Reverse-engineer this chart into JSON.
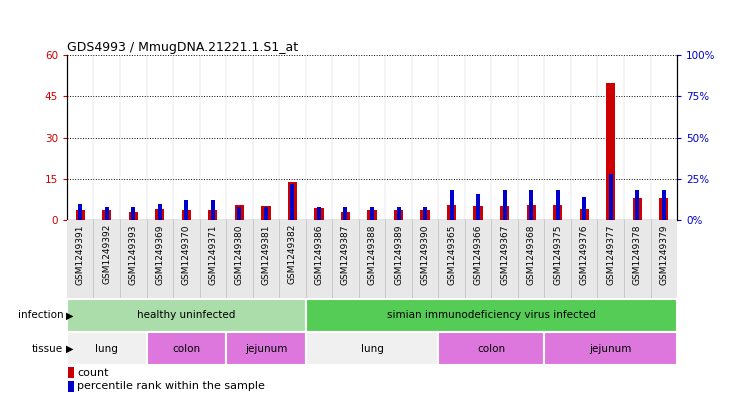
{
  "title": "GDS4993 / MmugDNA.21221.1.S1_at",
  "samples": [
    "GSM1249391",
    "GSM1249392",
    "GSM1249393",
    "GSM1249369",
    "GSM1249370",
    "GSM1249371",
    "GSM1249380",
    "GSM1249381",
    "GSM1249382",
    "GSM1249386",
    "GSM1249387",
    "GSM1249388",
    "GSM1249389",
    "GSM1249390",
    "GSM1249365",
    "GSM1249366",
    "GSM1249367",
    "GSM1249368",
    "GSM1249375",
    "GSM1249376",
    "GSM1249377",
    "GSM1249378",
    "GSM1249379"
  ],
  "count_values": [
    3.5,
    3.5,
    3.0,
    4.0,
    3.5,
    3.5,
    5.5,
    5.0,
    14.0,
    4.5,
    3.0,
    3.5,
    3.5,
    3.5,
    5.5,
    5.0,
    5.0,
    5.5,
    5.5,
    4.0,
    50.0,
    8.0,
    8.0
  ],
  "percentile_values": [
    10,
    8,
    8,
    10,
    12,
    12,
    8,
    8,
    22,
    8,
    8,
    8,
    8,
    8,
    18,
    16,
    18,
    18,
    18,
    14,
    28,
    18,
    18
  ],
  "left_ylim": [
    0,
    60
  ],
  "right_ylim": [
    0,
    100
  ],
  "left_yticks": [
    0,
    15,
    30,
    45,
    60
  ],
  "right_yticks": [
    0,
    25,
    50,
    75,
    100
  ],
  "red_color": "#cc0000",
  "blue_color": "#0000cc",
  "infection_groups": [
    {
      "label": "healthy uninfected",
      "start": 0,
      "end": 8,
      "color": "#aaddaa"
    },
    {
      "label": "simian immunodeficiency virus infected",
      "start": 9,
      "end": 22,
      "color": "#55cc55"
    }
  ],
  "tissue_groups": [
    {
      "label": "lung",
      "start": 0,
      "end": 2,
      "type": "lung"
    },
    {
      "label": "colon",
      "start": 3,
      "end": 5,
      "type": "pink"
    },
    {
      "label": "jejunum",
      "start": 6,
      "end": 8,
      "type": "pink"
    },
    {
      "label": "lung",
      "start": 9,
      "end": 13,
      "type": "lung"
    },
    {
      "label": "colon",
      "start": 14,
      "end": 17,
      "type": "pink"
    },
    {
      "label": "jejunum",
      "start": 18,
      "end": 22,
      "type": "pink"
    }
  ],
  "legend_count_label": "count",
  "legend_pct_label": "percentile rank within the sample",
  "lung_color": "#f0f0f0",
  "pink_color": "#dd77dd"
}
